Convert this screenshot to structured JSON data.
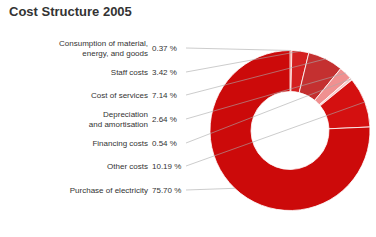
{
  "chart_data": {
    "type": "pie",
    "title": "Cost Structure 2005",
    "categories": [
      "Consumption of material,\nenergy, and goods",
      "Staff costs",
      "Cost of services",
      "Depreciation\nand amortisation",
      "Financing costs",
      "Other costs",
      "Purchase of electricity"
    ],
    "values": [
      0.37,
      3.42,
      7.14,
      2.64,
      0.54,
      10.19,
      75.7
    ],
    "value_labels": [
      "0.37 %",
      "3.42 %",
      "7.14 %",
      "2.64 %",
      "0.54 %",
      "10.19 %",
      "75.70 %"
    ],
    "colors": [
      "#e82010",
      "#d42020",
      "#c43030",
      "#f09090",
      "#f8c8c8",
      "#d41010",
      "#cc0a0a"
    ]
  }
}
